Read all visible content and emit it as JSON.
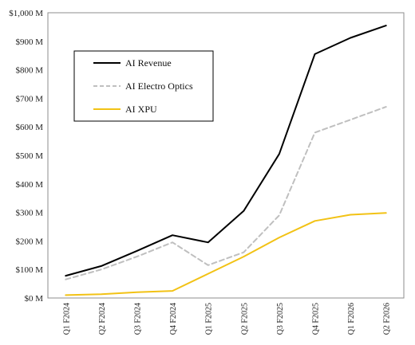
{
  "chart_data": {
    "type": "line",
    "title": "",
    "xlabel": "",
    "ylabel": "",
    "categories": [
      "Q1 F2024",
      "Q2 F2024",
      "Q3 F2024",
      "Q4 F2024",
      "Q1 F2025",
      "Q2 F2025",
      "Q3 F2025",
      "Q4 F2025",
      "Q1 F2026",
      "Q2 F2026"
    ],
    "yticks": [
      "$0 M",
      "$100 M",
      "$200 M",
      "$300 M",
      "$400 M",
      "$500 M",
      "$600 M",
      "$700 M",
      "$800 M",
      "$900 M",
      "$1,000 M"
    ],
    "ylim": [
      0,
      1000
    ],
    "grid": false,
    "legend_position": "top-left",
    "series": [
      {
        "name": "AI Revenue",
        "color": "#000000",
        "dash": "solid",
        "values": [
          78,
          112,
          165,
          220,
          195,
          305,
          505,
          855,
          912,
          955
        ]
      },
      {
        "name": "AI Electro Optics",
        "color": "#bfbfbf",
        "dash": "dashed",
        "values": [
          65,
          100,
          145,
          195,
          115,
          160,
          290,
          580,
          625,
          670
        ]
      },
      {
        "name": "AI XPU",
        "color": "#f2c215",
        "dash": "solid",
        "values": [
          10,
          13,
          20,
          25,
          85,
          145,
          212,
          270,
          292,
          298
        ]
      }
    ]
  }
}
